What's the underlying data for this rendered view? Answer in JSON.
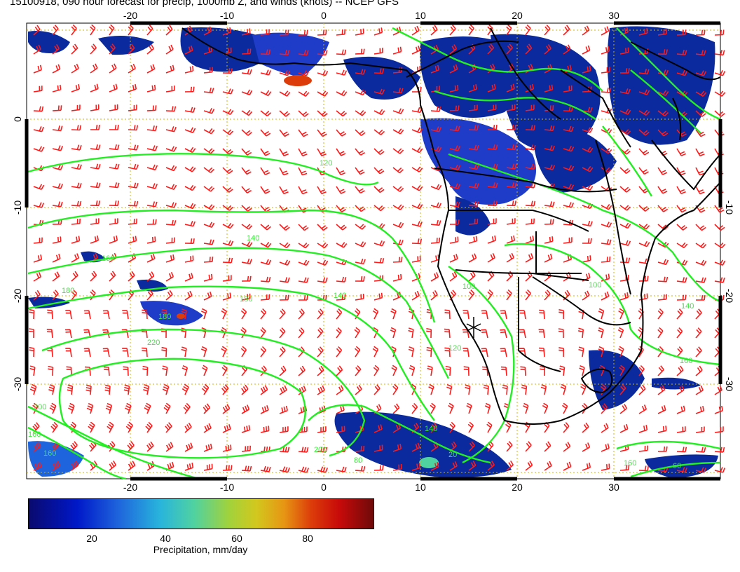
{
  "title": "15100918, 090 hour forecast for precip, 1000mb Z, and winds (knots) -- NCEP GFS",
  "map": {
    "lon_ticks": [
      "-20",
      "-10",
      "0",
      "10",
      "20",
      "30"
    ],
    "lat_ticks": [
      "0",
      "-10",
      "-20",
      "-30"
    ],
    "contour_labels": [
      "120",
      "140",
      "140",
      "160",
      "160",
      "180",
      "180",
      "200",
      "200",
      "220",
      "100",
      "100",
      "140",
      "160",
      "160",
      "120",
      "140",
      "160",
      "180",
      "80",
      "20",
      "60"
    ],
    "colors": {
      "contour": "#22ee22",
      "wind_barb": "#ff1a1a",
      "coast": "#000000",
      "grid": "#d2b400",
      "precip_low": "#0018c8",
      "precip_high": "#c80a0a"
    }
  },
  "colorbar": {
    "ticks": [
      "20",
      "40",
      "60",
      "80"
    ],
    "label": "Precipitation, mm/day"
  }
}
